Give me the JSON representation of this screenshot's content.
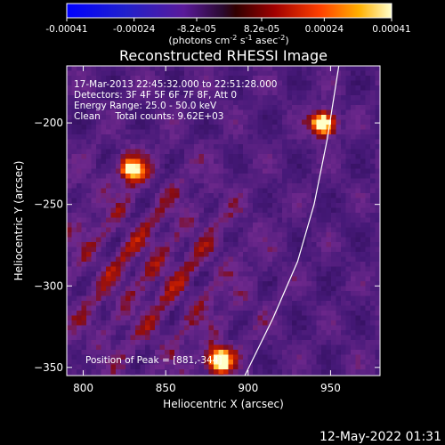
{
  "chart_data": {
    "type": "heatmap",
    "title": "Reconstructed RHESSI Image",
    "xlabel": "Heliocentric X (arcsec)",
    "ylabel": "Heliocentric Y (arcsec)",
    "xlim": [
      790,
      980
    ],
    "ylim": [
      -355,
      -165
    ],
    "x_ticks": [
      800,
      850,
      900,
      950
    ],
    "y_ticks": [
      -200,
      -250,
      -300,
      -350
    ],
    "colorbar": {
      "range": [
        -0.00041,
        0.00041
      ],
      "ticks": [
        -0.00041,
        -0.00024,
        -8.2e-05,
        8.2e-05,
        0.00024,
        0.00041
      ],
      "tick_labels": [
        "-0.00041",
        "-0.00024",
        "-8.2e-05",
        "8.2e-05",
        "0.00024",
        "0.00041"
      ],
      "unit_label": "(photons cm<sup>-2</sup> s<sup>-1</sup> asec<sup>-2</sup>)"
    },
    "info": {
      "time_range": "17-Mar-2013 22:45:32.000 to 22:51:28.000",
      "detectors": "Detectors: 3F 4F 5F 6F 7F 8F, Att 0",
      "energy": "Energy Range: 25.0 - 50.0 keV",
      "clean": "Clean     Total counts: 9.62E+03",
      "peak": "Position of Peak = [881,-344]"
    },
    "sources": [
      {
        "x": 944,
        "y": -199,
        "peak": 1.0
      },
      {
        "x": 881,
        "y": -344,
        "peak": 1.0
      },
      {
        "x": 828,
        "y": -227,
        "peak": 0.8
      }
    ],
    "limb_arc": [
      [
        898,
        -355
      ],
      [
        915,
        -320
      ],
      [
        930,
        -285
      ],
      [
        940,
        -250
      ],
      [
        948,
        -210
      ],
      [
        955,
        -165
      ]
    ]
  },
  "footer": {
    "timestamp": "12-May-2022 01:31"
  }
}
